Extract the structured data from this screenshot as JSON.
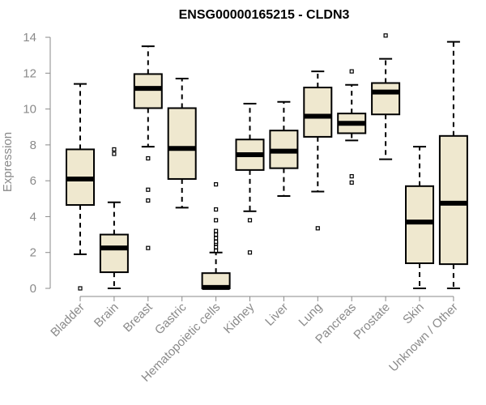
{
  "chart_data": {
    "type": "box",
    "title": "ENSG00000165215 - CLDN3",
    "xlabel": "",
    "ylabel": "Expression",
    "ylim": [
      0,
      14
    ],
    "yticks": [
      0,
      2,
      4,
      6,
      8,
      10,
      12,
      14
    ],
    "grid": false,
    "box_fill": "#efe8cf",
    "box_stroke": "#000000",
    "median_color": "#000000",
    "tick_label_color": "#8a8a8a",
    "categories": [
      "Bladder",
      "Brain",
      "Breast",
      "Gastric",
      "Hematopoietic cells",
      "Kidney",
      "Liver",
      "Lung",
      "Pancreas",
      "Prostate",
      "Skin",
      "Unknown / Other"
    ],
    "boxes": [
      {
        "category": "Bladder",
        "whisker_low": 1.9,
        "q1": 4.65,
        "median": 6.1,
        "q3": 7.75,
        "whisker_high": 11.4,
        "outliers": [
          0.0
        ]
      },
      {
        "category": "Brain",
        "whisker_low": 0.0,
        "q1": 0.9,
        "median": 2.25,
        "q3": 3.0,
        "whisker_high": 4.8,
        "outliers": [
          7.5,
          7.75
        ]
      },
      {
        "category": "Breast",
        "whisker_low": 7.9,
        "q1": 10.05,
        "median": 11.15,
        "q3": 11.95,
        "whisker_high": 13.5,
        "outliers": [
          2.25,
          4.9,
          5.5,
          7.25
        ]
      },
      {
        "category": "Gastric",
        "whisker_low": 4.5,
        "q1": 6.1,
        "median": 7.8,
        "q3": 10.05,
        "whisker_high": 11.7,
        "outliers": []
      },
      {
        "category": "Hematopoietic cells",
        "whisker_low": 0.0,
        "q1": 0.0,
        "median": 0.05,
        "q3": 0.85,
        "whisker_high": 2.0,
        "outliers": [
          2.1,
          2.3,
          2.5,
          2.6,
          2.8,
          3.0,
          3.2,
          3.8,
          4.4,
          5.8
        ]
      },
      {
        "category": "Kidney",
        "whisker_low": 4.3,
        "q1": 6.6,
        "median": 7.45,
        "q3": 8.3,
        "whisker_high": 10.3,
        "outliers": [
          2.0,
          3.8
        ]
      },
      {
        "category": "Liver",
        "whisker_low": 5.15,
        "q1": 6.7,
        "median": 7.65,
        "q3": 8.8,
        "whisker_high": 10.4,
        "outliers": []
      },
      {
        "category": "Lung",
        "whisker_low": 5.4,
        "q1": 8.45,
        "median": 9.6,
        "q3": 11.2,
        "whisker_high": 12.1,
        "outliers": [
          3.35
        ]
      },
      {
        "category": "Pancreas",
        "whisker_low": 8.25,
        "q1": 8.65,
        "median": 9.2,
        "q3": 9.75,
        "whisker_high": 11.35,
        "outliers": [
          5.9,
          6.25,
          12.1
        ]
      },
      {
        "category": "Prostate",
        "whisker_low": 7.2,
        "q1": 9.7,
        "median": 10.95,
        "q3": 11.45,
        "whisker_high": 12.8,
        "outliers": [
          14.1
        ]
      },
      {
        "category": "Skin",
        "whisker_low": 0.0,
        "q1": 1.4,
        "median": 3.7,
        "q3": 5.7,
        "whisker_high": 7.9,
        "outliers": []
      },
      {
        "category": "Unknown / Other",
        "whisker_low": 0.0,
        "q1": 1.35,
        "median": 4.75,
        "q3": 8.5,
        "whisker_high": 13.75,
        "outliers": []
      }
    ]
  }
}
